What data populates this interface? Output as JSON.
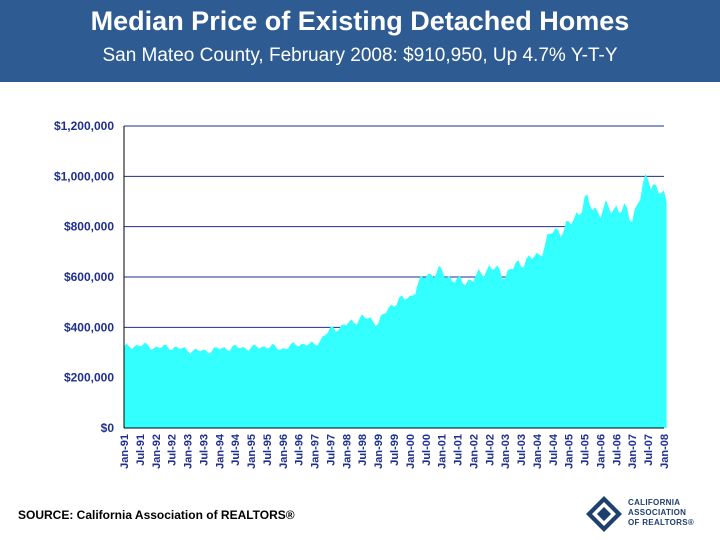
{
  "header": {
    "title": "Median Price of Existing Detached Homes",
    "subtitle": "San Mateo County, February 2008: $910,950, Up 4.7% Y-T-Y"
  },
  "source": "SOURCE: California Association of REALTORS®",
  "logo": {
    "line1": "CALIFORNIA",
    "line2": "ASSOCIATION",
    "line3": "OF REALTORS®"
  },
  "colors": {
    "header_bg": "#2e5c92",
    "area": "#33ffff",
    "grid": "#1f2f8f",
    "accent": "#1f2f8f"
  },
  "chart_data": {
    "type": "area",
    "title": "",
    "xlabel": "",
    "ylabel": "",
    "ylim": [
      0,
      1200000
    ],
    "yticks": [
      0,
      200000,
      400000,
      600000,
      800000,
      1000000,
      1200000
    ],
    "ytick_labels": [
      "$0",
      "$200,000",
      "$400,000",
      "$600,000",
      "$800,000",
      "$1,000,000",
      "$1,200,000"
    ],
    "xtick_labels": [
      "Jan-91",
      "Jul-91",
      "Jan-92",
      "Jul-92",
      "Jan-93",
      "Jul-93",
      "Jan-94",
      "Jul-94",
      "Jan-95",
      "Jul-95",
      "Jan-96",
      "Jul-96",
      "Jan-97",
      "Jul-97",
      "Jan-98",
      "Jul-98",
      "Jan-99",
      "Jul-99",
      "Jan-00",
      "Jul-00",
      "Jan-01",
      "Jul-01",
      "Jan-02",
      "Jul-02",
      "Jan-03",
      "Jul-03",
      "Jan-04",
      "Jul-04",
      "Jan-05",
      "Jul-05",
      "Jan-06",
      "Jul-06",
      "Jan-07",
      "Jul-07",
      "Jan-08"
    ],
    "series": [
      {
        "name": "Median Price",
        "anchors": [
          [
            "Jan-91",
            320000
          ],
          [
            "Jul-91",
            330000
          ],
          [
            "Jan-92",
            320000
          ],
          [
            "Jul-92",
            322000
          ],
          [
            "Jan-93",
            310000
          ],
          [
            "Jul-93",
            305000
          ],
          [
            "Jan-94",
            315000
          ],
          [
            "Jul-94",
            320000
          ],
          [
            "Jan-95",
            318000
          ],
          [
            "Jul-95",
            325000
          ],
          [
            "Jan-96",
            315000
          ],
          [
            "Jul-96",
            335000
          ],
          [
            "Jan-97",
            330000
          ],
          [
            "Jul-97",
            390000
          ],
          [
            "Jan-98",
            410000
          ],
          [
            "Jul-98",
            440000
          ],
          [
            "Jan-99",
            420000
          ],
          [
            "Jul-99",
            500000
          ],
          [
            "Jan-00",
            520000
          ],
          [
            "Jul-00",
            610000
          ],
          [
            "Jan-01",
            620000
          ],
          [
            "Jul-01",
            580000
          ],
          [
            "Jan-02",
            590000
          ],
          [
            "Jul-02",
            640000
          ],
          [
            "Jan-03",
            610000
          ],
          [
            "Jul-03",
            660000
          ],
          [
            "Jan-04",
            680000
          ],
          [
            "Jul-04",
            780000
          ],
          [
            "Jan-05",
            800000
          ],
          [
            "Jul-05",
            900000
          ],
          [
            "Jan-06",
            860000
          ],
          [
            "Jul-06",
            880000
          ],
          [
            "Jan-07",
            840000
          ],
          [
            "Jul-07",
            1000000
          ],
          [
            "Jan-08",
            910950
          ]
        ]
      }
    ]
  }
}
